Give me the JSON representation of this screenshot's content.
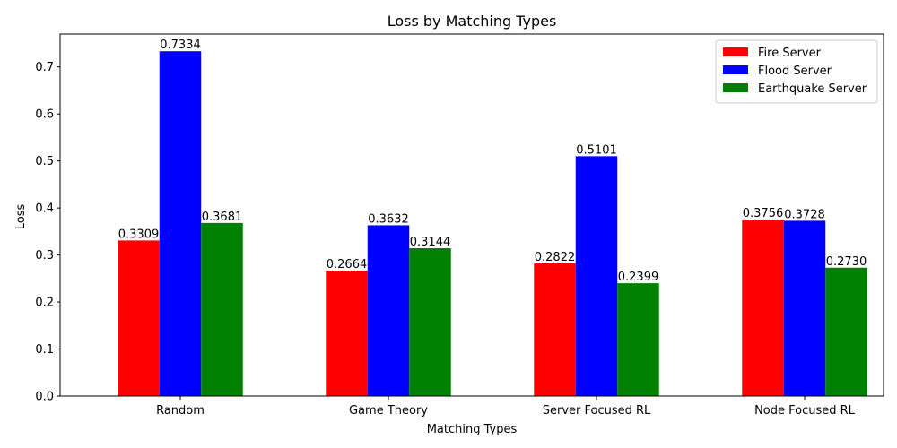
{
  "chart_data": {
    "type": "bar",
    "title": "Loss by Matching Types",
    "xlabel": "Matching Types",
    "ylabel": "Loss",
    "categories": [
      "Random",
      "Game Theory",
      "Server Focused RL",
      "Node Focused RL"
    ],
    "series": [
      {
        "name": "Fire Server",
        "color": "#ff0000",
        "values": [
          0.3309,
          0.2664,
          0.2822,
          0.3756
        ],
        "labels": [
          "0.3309",
          "0.2664",
          "0.2822",
          "0.3756"
        ]
      },
      {
        "name": "Flood Server",
        "color": "#0000ff",
        "values": [
          0.7334,
          0.3632,
          0.5101,
          0.3728
        ],
        "labels": [
          "0.7334",
          "0.3632",
          "0.5101",
          "0.3728"
        ]
      },
      {
        "name": "Earthquake Server",
        "color": "#008000",
        "values": [
          0.3681,
          0.3144,
          0.2399,
          0.273
        ],
        "labels": [
          "0.3681",
          "0.3144",
          "0.2399",
          "0.2730"
        ]
      }
    ],
    "ylim": [
      0,
      0.77
    ],
    "yticks": [
      0.0,
      0.1,
      0.2,
      0.3,
      0.4,
      0.5,
      0.6,
      0.7
    ],
    "ytick_labels": [
      "0.0",
      "0.1",
      "0.2",
      "0.3",
      "0.4",
      "0.5",
      "0.6",
      "0.7"
    ],
    "grid": false,
    "legend_position": "top-right"
  }
}
